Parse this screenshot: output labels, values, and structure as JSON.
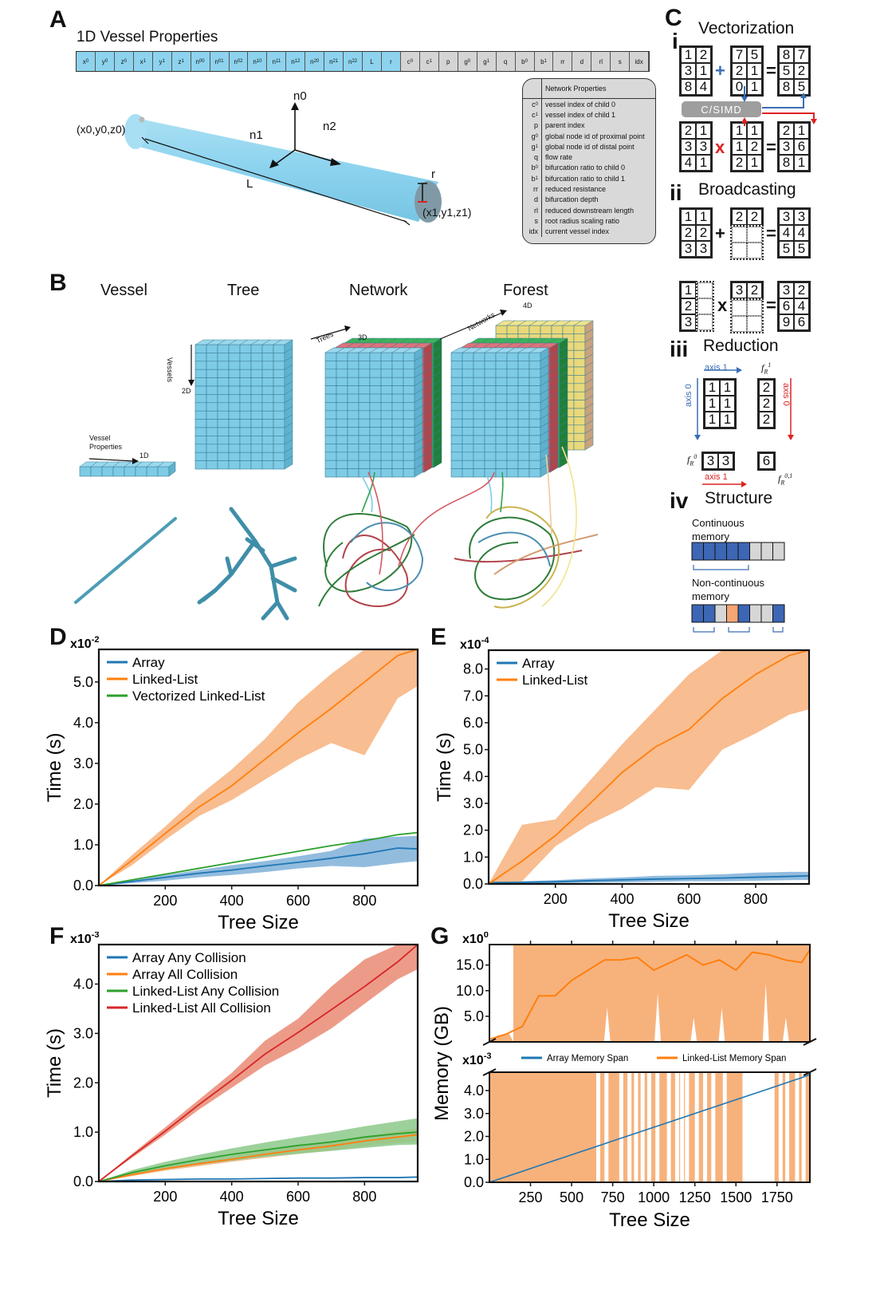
{
  "panels": {
    "A": {
      "letter": "A",
      "title": "1D Vessel Properties",
      "properties_blue": [
        "x0",
        "y0",
        "z0",
        "x1",
        "y1",
        "z1",
        "n00",
        "n01",
        "n02",
        "n10",
        "n11",
        "n12",
        "n20",
        "n21",
        "n22",
        "L",
        "r"
      ],
      "properties_grey": [
        "c0",
        "c1",
        "p",
        "g0",
        "g1",
        "q",
        "b0",
        "b1",
        "rr",
        "d",
        "rl",
        "s",
        "idx"
      ],
      "vessel_labels": {
        "start": "(x0,y0,z0)",
        "end": "(x1,y1,z1)",
        "length": "L",
        "radius": "r",
        "n0": "n0",
        "n1": "n1",
        "n2": "n2"
      },
      "network_table": {
        "header": "Network Properties",
        "rows": [
          {
            "sym": "c0",
            "desc": "vessel index of child 0"
          },
          {
            "sym": "c1",
            "desc": "vessel index of child 1"
          },
          {
            "sym": "p",
            "desc": "parent index"
          },
          {
            "sym": "g0",
            "desc": "global node id of proximal point"
          },
          {
            "sym": "g1",
            "desc": "global node id of distal point"
          },
          {
            "sym": "q",
            "desc": "flow rate"
          },
          {
            "sym": "b0",
            "desc": "bifurcation ratio to child 0"
          },
          {
            "sym": "b1",
            "desc": "bifurcation ratio to child 1"
          },
          {
            "sym": "rr",
            "desc": "reduced resistance"
          },
          {
            "sym": "d",
            "desc": "bifurcation depth"
          },
          {
            "sym": "rl",
            "desc": "reduced downstream length"
          },
          {
            "sym": "s",
            "desc": "root radius scaling ratio"
          },
          {
            "sym": "idx",
            "desc": "current vessel index"
          }
        ]
      }
    },
    "B": {
      "letter": "B",
      "columns": [
        "Vessel",
        "Tree",
        "Network",
        "Forest"
      ],
      "annotations": {
        "vessel_props": "Vessel Properties",
        "d1": "1D",
        "vessels": "Vessels",
        "d2": "2D",
        "trees": "Trees",
        "d3": "3D",
        "networks": "Networks",
        "d4": "4D"
      }
    },
    "C": {
      "letter": "C",
      "sections": [
        {
          "numeral": "i",
          "title": "Vectorization",
          "simd_label": "C/SIMD",
          "add": {
            "a": [
              [
                1,
                2
              ],
              [
                3,
                1
              ],
              [
                8,
                4
              ]
            ],
            "b": [
              [
                7,
                5
              ],
              [
                2,
                1
              ],
              [
                0,
                1
              ]
            ],
            "result": [
              [
                8,
                7
              ],
              [
                5,
                2
              ],
              [
                8,
                5
              ]
            ],
            "op": "+"
          },
          "mul": {
            "a": [
              [
                2,
                1
              ],
              [
                3,
                3
              ],
              [
                4,
                1
              ]
            ],
            "b": [
              [
                1,
                1
              ],
              [
                1,
                2
              ],
              [
                2,
                1
              ]
            ],
            "result": [
              [
                2,
                1
              ],
              [
                3,
                6
              ],
              [
                8,
                1
              ]
            ],
            "op": "x"
          }
        },
        {
          "numeral": "ii",
          "title": "Broadcasting",
          "add": {
            "a": [
              [
                1,
                1
              ],
              [
                2,
                2
              ],
              [
                3,
                3
              ]
            ],
            "b": [
              [
                2,
                2
              ]
            ],
            "result": [
              [
                3,
                3
              ],
              [
                4,
                4
              ],
              [
                5,
                5
              ]
            ],
            "op": "+"
          },
          "mul": {
            "a": [
              [
                1
              ],
              [
                2
              ],
              [
                3
              ]
            ],
            "b": [
              [
                3,
                2
              ]
            ],
            "result": [
              [
                3,
                2
              ],
              [
                6,
                4
              ],
              [
                9,
                6
              ]
            ],
            "op": "x"
          }
        },
        {
          "numeral": "iii",
          "title": "Reduction",
          "matrix": [
            [
              1,
              1
            ],
            [
              1,
              1
            ],
            [
              1,
              1
            ]
          ],
          "axis1_label": "axis 1",
          "axis0_label": "axis 0",
          "f_r1": [
            2,
            2,
            2
          ],
          "f_r0": [
            3,
            3
          ],
          "f_r01": 6,
          "f_r1_label": "f_R^1",
          "f_r0_label": "f_R^0",
          "f_r01_label": "f_R^0,1"
        },
        {
          "numeral": "iv",
          "title": "Structure",
          "continuous_label": "Continuous memory",
          "noncontinuous_label": "Non-continuous memory"
        }
      ]
    },
    "D": {
      "letter": "D",
      "multiplier": "x10-2"
    },
    "E": {
      "letter": "E",
      "multiplier": "x10-4"
    },
    "F": {
      "letter": "F",
      "multiplier": "x10-3"
    },
    "G": {
      "letter": "G",
      "multiplier_top": "x100",
      "multiplier_bottom": "x10-3"
    }
  },
  "colors": {
    "blue": "#1f77b4",
    "orange": "#ff7f0e",
    "green": "#2ca02c",
    "red": "#d62728",
    "orange_band": "#f7b27c",
    "blue_band": "#7fb0d8",
    "green_band": "#8cc98a",
    "red_band": "#ea8a74",
    "vessel_blue": "#8dd3ee",
    "simd_grey": "#9e9e9e",
    "mem_blue": "#3d66b5",
    "mem_grey": "#d6d6d6",
    "mem_orange": "#f4a673"
  },
  "chart_data": [
    {
      "id": "D",
      "type": "line",
      "title": "",
      "xlabel": "Tree Size",
      "ylabel": "Time (s)",
      "y_multiplier": "x10^-2",
      "xlim": [
        0,
        960
      ],
      "ylim": [
        0,
        5.8
      ],
      "xticks": [
        200,
        400,
        600,
        800
      ],
      "yticks": [
        0.0,
        1.0,
        2.0,
        3.0,
        4.0,
        5.0
      ],
      "legend": "top-left",
      "x": [
        0,
        100,
        200,
        300,
        400,
        500,
        600,
        700,
        800,
        900,
        960
      ],
      "series": [
        {
          "name": "Array",
          "color": "#1f77b4",
          "values": [
            0,
            0.1,
            0.2,
            0.3,
            0.38,
            0.48,
            0.57,
            0.67,
            0.78,
            0.92,
            0.9
          ],
          "band_low": [
            0,
            0.06,
            0.12,
            0.2,
            0.26,
            0.33,
            0.42,
            0.48,
            0.45,
            0.55,
            0.6
          ],
          "band_high": [
            0,
            0.14,
            0.26,
            0.38,
            0.5,
            0.6,
            0.72,
            0.85,
            1.15,
            1.2,
            1.22
          ]
        },
        {
          "name": "Linked-List",
          "color": "#ff7f0e",
          "values": [
            0,
            0.62,
            1.28,
            1.92,
            2.45,
            3.1,
            3.75,
            4.35,
            5.0,
            5.65,
            5.8
          ],
          "band_low": [
            0,
            0.5,
            1.12,
            1.7,
            2.1,
            2.6,
            3.1,
            3.5,
            3.2,
            4.6,
            4.9
          ],
          "band_high": [
            0,
            0.75,
            1.45,
            2.2,
            2.85,
            3.6,
            4.5,
            5.2,
            5.8,
            5.8,
            5.8
          ]
        },
        {
          "name": "Vectorized Linked-List",
          "color": "#2ca02c",
          "values": [
            0,
            0.14,
            0.28,
            0.42,
            0.56,
            0.7,
            0.84,
            0.98,
            1.1,
            1.25,
            1.3
          ]
        }
      ]
    },
    {
      "id": "E",
      "type": "line",
      "title": "",
      "xlabel": "Tree Size",
      "ylabel": "Time (s)",
      "y_multiplier": "x10^-4",
      "xlim": [
        0,
        960
      ],
      "ylim": [
        0,
        8.7
      ],
      "xticks": [
        200,
        400,
        600,
        800
      ],
      "yticks": [
        0.0,
        1.0,
        2.0,
        3.0,
        4.0,
        5.0,
        6.0,
        7.0,
        8.0
      ],
      "legend": "top-left",
      "x": [
        0,
        100,
        200,
        300,
        400,
        500,
        600,
        700,
        800,
        900,
        960
      ],
      "series": [
        {
          "name": "Array",
          "color": "#1f77b4",
          "values": [
            0.05,
            0.06,
            0.08,
            0.12,
            0.15,
            0.18,
            0.2,
            0.22,
            0.25,
            0.28,
            0.3
          ],
          "band_low": [
            0.02,
            0.02,
            0.03,
            0.05,
            0.06,
            0.08,
            0.1,
            0.1,
            0.12,
            0.14,
            0.15
          ],
          "band_high": [
            0.08,
            0.1,
            0.14,
            0.2,
            0.24,
            0.3,
            0.32,
            0.36,
            0.42,
            0.45,
            0.45
          ]
        },
        {
          "name": "Linked-List",
          "color": "#ff7f0e",
          "values": [
            0,
            0.85,
            1.8,
            2.95,
            4.15,
            5.1,
            5.75,
            6.9,
            7.8,
            8.5,
            8.8
          ],
          "band_low": [
            0,
            0.1,
            1.4,
            2.2,
            2.8,
            3.6,
            3.5,
            5.0,
            5.6,
            6.3,
            6.5
          ],
          "band_high": [
            0,
            2.2,
            2.4,
            3.8,
            5.2,
            6.5,
            7.8,
            8.7,
            8.7,
            8.7,
            8.7
          ]
        }
      ]
    },
    {
      "id": "F",
      "type": "line",
      "title": "",
      "xlabel": "Tree Size",
      "ylabel": "Time (s)",
      "y_multiplier": "x10^-3",
      "xlim": [
        0,
        960
      ],
      "ylim": [
        0,
        4.8
      ],
      "xticks": [
        200,
        400,
        600,
        800
      ],
      "yticks": [
        0.0,
        1.0,
        2.0,
        3.0,
        4.0
      ],
      "legend": "top-left",
      "x": [
        0,
        100,
        200,
        300,
        400,
        500,
        600,
        700,
        800,
        900,
        960
      ],
      "series": [
        {
          "name": "Array Any Collision",
          "color": "#1f77b4",
          "values": [
            0,
            0.03,
            0.04,
            0.05,
            0.05,
            0.06,
            0.07,
            0.07,
            0.08,
            0.08,
            0.09
          ]
        },
        {
          "name": "Array All Collision",
          "color": "#ff7f0e",
          "values": [
            0,
            0.14,
            0.26,
            0.36,
            0.45,
            0.55,
            0.64,
            0.72,
            0.82,
            0.9,
            0.95
          ],
          "band_low": [
            0,
            0.11,
            0.22,
            0.31,
            0.4,
            0.48,
            0.56,
            0.63,
            0.72,
            0.78,
            0.82
          ],
          "band_high": [
            0,
            0.17,
            0.3,
            0.41,
            0.51,
            0.62,
            0.72,
            0.82,
            0.92,
            1.02,
            1.08
          ]
        },
        {
          "name": "Linked-List Any Collision",
          "color": "#2ca02c",
          "values": [
            0,
            0.18,
            0.32,
            0.44,
            0.55,
            0.64,
            0.73,
            0.8,
            0.9,
            0.97,
            1.0
          ],
          "band_low": [
            0,
            0.13,
            0.24,
            0.34,
            0.42,
            0.5,
            0.56,
            0.62,
            0.68,
            0.74,
            0.75
          ],
          "band_high": [
            0,
            0.23,
            0.4,
            0.54,
            0.67,
            0.79,
            0.9,
            1.0,
            1.12,
            1.22,
            1.28
          ]
        },
        {
          "name": "Linked-List All Collision",
          "color": "#d62728",
          "values": [
            0,
            0.52,
            1.02,
            1.55,
            2.05,
            2.58,
            3.02,
            3.48,
            3.95,
            4.45,
            4.8
          ],
          "band_low": [
            0,
            0.48,
            0.95,
            1.45,
            1.9,
            2.35,
            2.7,
            3.1,
            3.6,
            4.1,
            4.3
          ],
          "band_high": [
            0,
            0.56,
            1.1,
            1.65,
            2.2,
            2.85,
            3.3,
            3.95,
            4.5,
            4.8,
            4.8
          ]
        }
      ]
    },
    {
      "id": "G",
      "type": "area",
      "title": "",
      "xlabel": "Tree Size",
      "ylabel": "Memory (GB)",
      "broken_axis": true,
      "top": {
        "y_multiplier": "x10^0",
        "ylim": [
          0,
          19
        ],
        "yticks": [
          5.0,
          10.0,
          15.0
        ]
      },
      "bottom": {
        "y_multiplier": "x10^-3",
        "ylim": [
          0,
          4.8
        ],
        "yticks": [
          0.0,
          1.0,
          2.0,
          3.0,
          4.0
        ]
      },
      "xlim": [
        0,
        1950
      ],
      "xticks": [
        250,
        500,
        750,
        1000,
        1250,
        1500,
        1750
      ],
      "legend": "center (between axes)",
      "x": [
        0,
        100,
        200,
        300,
        400,
        500,
        600,
        700,
        800,
        900,
        1000,
        1100,
        1200,
        1300,
        1400,
        1500,
        1600,
        1700,
        1800,
        1900,
        1950
      ],
      "series": [
        {
          "name": "Array Memory Span",
          "color": "#1f77b4",
          "axis": "bottom",
          "values": [
            0,
            0.24,
            0.48,
            0.72,
            0.96,
            1.2,
            1.44,
            1.68,
            1.92,
            2.16,
            2.4,
            2.64,
            2.88,
            3.12,
            3.36,
            3.6,
            3.84,
            4.08,
            4.32,
            4.56,
            4.7
          ]
        },
        {
          "name": "Linked-List Memory Span",
          "color": "#ff7f0e",
          "axis": "top",
          "values": [
            0.5,
            1.5,
            3.0,
            9.0,
            9.0,
            12.0,
            14.0,
            16.0,
            16.0,
            16.5,
            14.0,
            15.5,
            17.0,
            15.0,
            16.0,
            14.0,
            17.5,
            17.0,
            16.0,
            15.5,
            18.0
          ]
        }
      ]
    }
  ]
}
